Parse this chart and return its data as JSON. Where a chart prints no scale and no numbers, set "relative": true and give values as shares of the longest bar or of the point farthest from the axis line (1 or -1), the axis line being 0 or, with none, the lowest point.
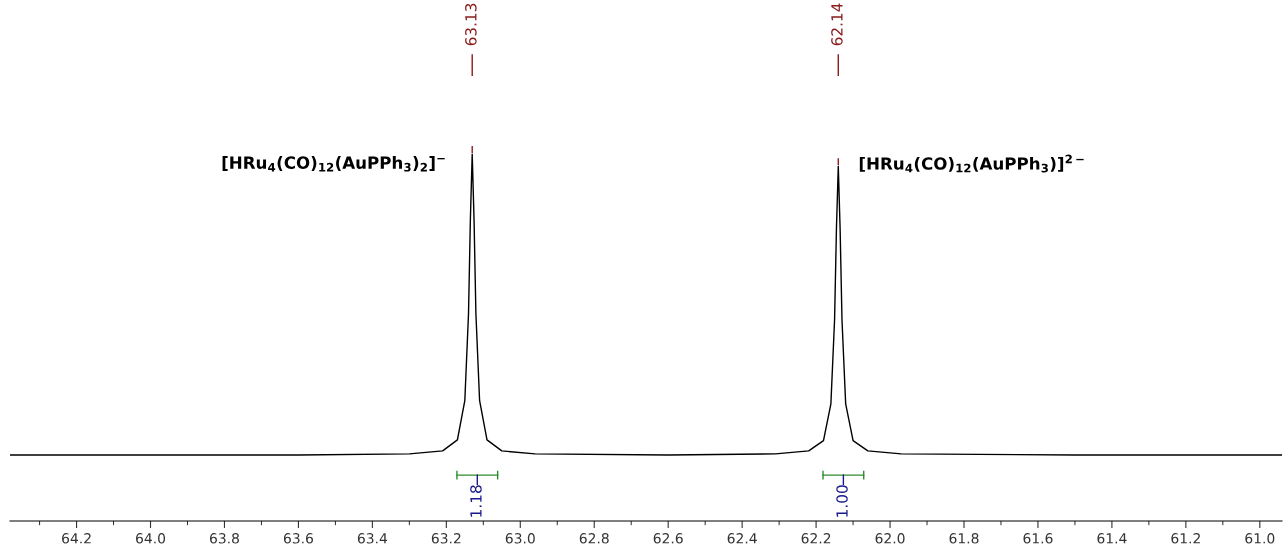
{
  "chart_data": {
    "type": "line",
    "relative": true,
    "xlim": [
      64.38,
      60.94
    ],
    "xticks": [
      64.2,
      {
        "value": 64,
        "label": "64.0"
      },
      63.8,
      63.6,
      63.4,
      63.2,
      {
        "value": 63,
        "label": "63.0"
      },
      62.8,
      62.6,
      62.4,
      62.2,
      {
        "value": 62,
        "label": "62.0"
      },
      61.8,
      61.6,
      61.4,
      61.2,
      {
        "value": 61,
        "label": "61.0"
      }
    ],
    "series": [
      {
        "color": "#000000",
        "x": [
          64.38,
          63.6,
          63.3,
          63.21,
          63.17,
          63.15,
          63.14,
          63.135,
          63.13,
          63.125,
          63.12,
          63.11,
          63.09,
          63.05,
          62.96,
          62.6,
          62.31,
          62.22,
          62.18,
          62.16,
          62.15,
          62.145,
          62.14,
          62.135,
          62.13,
          62.12,
          62.1,
          62.06,
          61.97,
          61.5,
          60.94
        ],
        "values": [
          0.18,
          0.18,
          0.183,
          0.191,
          0.221,
          0.328,
          0.565,
          0.82,
          1,
          0.82,
          0.565,
          0.328,
          0.221,
          0.191,
          0.183,
          0.18,
          0.183,
          0.191,
          0.219,
          0.319,
          0.549,
          0.795,
          0.967,
          0.795,
          0.549,
          0.319,
          0.219,
          0.191,
          0.183,
          0.18,
          0.18
        ]
      }
    ],
    "annotations": [
      "63.13",
      "62.14",
      "1.18",
      "1.00",
      "[HRu$_{4}$(CO)$_{12}$(AuPPh$_{3}$)$_{2}$]$^{−}$",
      "[HRu$_{4}$(CO)$_{12}$(AuPPh$_{3}$)]$^{2−}$"
    ]
  }
}
